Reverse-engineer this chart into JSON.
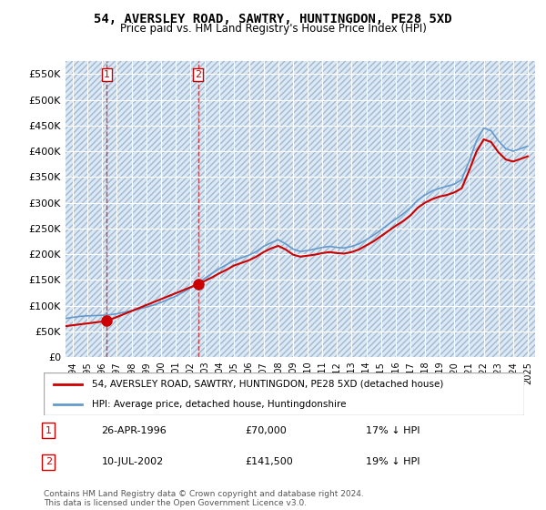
{
  "title": "54, AVERSLEY ROAD, SAWTRY, HUNTINGDON, PE28 5XD",
  "subtitle": "Price paid vs. HM Land Registry's House Price Index (HPI)",
  "ylabel": "",
  "background_color": "#ffffff",
  "plot_bg_color": "#dce9f5",
  "grid_color": "#ffffff",
  "hatch_color": "#c8d8e8",
  "sale_dates": [
    1996.32,
    2002.53
  ],
  "sale_prices": [
    70000,
    141500
  ],
  "sale_labels": [
    "1",
    "2"
  ],
  "hpi_line_color": "#6699cc",
  "price_line_color": "#cc0000",
  "ylim": [
    0,
    575000
  ],
  "yticks": [
    0,
    50000,
    100000,
    150000,
    200000,
    250000,
    300000,
    350000,
    400000,
    450000,
    500000,
    550000
  ],
  "ytick_labels": [
    "£0",
    "£50K",
    "£100K",
    "£150K",
    "£200K",
    "£250K",
    "£300K",
    "£350K",
    "£400K",
    "£450K",
    "£500K",
    "£550K"
  ],
  "xlim_start": 1993.5,
  "xlim_end": 2025.5,
  "xtick_years": [
    1994,
    1995,
    1996,
    1997,
    1998,
    1999,
    2000,
    2001,
    2002,
    2003,
    2004,
    2005,
    2006,
    2007,
    2008,
    2009,
    2010,
    2011,
    2012,
    2013,
    2014,
    2015,
    2016,
    2017,
    2018,
    2019,
    2020,
    2021,
    2022,
    2023,
    2024,
    2025
  ],
  "legend_label_red": "54, AVERSLEY ROAD, SAWTRY, HUNTINGDON, PE28 5XD (detached house)",
  "legend_label_blue": "HPI: Average price, detached house, Huntingdonshire",
  "annotation1": [
    "1",
    "26-APR-1996",
    "£70,000",
    "17% ↓ HPI"
  ],
  "annotation2": [
    "2",
    "10-JUL-2002",
    "£141,500",
    "19% ↓ HPI"
  ],
  "footer": "Contains HM Land Registry data © Crown copyright and database right 2024.\nThis data is licensed under the Open Government Licence v3.0.",
  "hpi_x": [
    1993.5,
    1994,
    1994.5,
    1995,
    1995.5,
    1996,
    1996.5,
    1997,
    1997.5,
    1998,
    1998.5,
    1999,
    1999.5,
    2000,
    2000.5,
    2001,
    2001.5,
    2002,
    2002.5,
    2003,
    2003.5,
    2004,
    2004.5,
    2005,
    2005.5,
    2006,
    2006.5,
    2007,
    2007.5,
    2008,
    2008.5,
    2009,
    2009.5,
    2010,
    2010.5,
    2011,
    2011.5,
    2012,
    2012.5,
    2013,
    2013.5,
    2014,
    2014.5,
    2015,
    2015.5,
    2016,
    2016.5,
    2017,
    2017.5,
    2018,
    2018.5,
    2019,
    2019.5,
    2020,
    2020.5,
    2021,
    2021.5,
    2022,
    2022.5,
    2023,
    2023.5,
    2024,
    2024.5,
    2025
  ],
  "hpi_y": [
    75000,
    77000,
    79000,
    80000,
    80500,
    81000,
    82000,
    84000,
    87000,
    90000,
    93000,
    97000,
    101000,
    106000,
    112000,
    118000,
    126000,
    134000,
    143000,
    153000,
    163000,
    172000,
    180000,
    188000,
    193000,
    198000,
    205000,
    215000,
    222000,
    228000,
    220000,
    210000,
    205000,
    207000,
    210000,
    213000,
    215000,
    213000,
    212000,
    215000,
    220000,
    228000,
    237000,
    247000,
    258000,
    268000,
    278000,
    290000,
    305000,
    315000,
    323000,
    328000,
    332000,
    336000,
    345000,
    380000,
    420000,
    445000,
    440000,
    420000,
    405000,
    400000,
    405000,
    410000
  ],
  "price_x": [
    1993.5,
    1996.32,
    2002.53,
    2003,
    2003.5,
    2004,
    2004.5,
    2005,
    2005.5,
    2006,
    2006.5,
    2007,
    2007.5,
    2008,
    2008.5,
    2009,
    2009.5,
    2010,
    2010.5,
    2011,
    2011.5,
    2012,
    2012.5,
    2013,
    2013.5,
    2014,
    2014.5,
    2015,
    2015.5,
    2016,
    2016.5,
    2017,
    2017.5,
    2018,
    2018.5,
    2019,
    2019.5,
    2020,
    2020.5,
    2021,
    2021.5,
    2022,
    2022.5,
    2023,
    2023.5,
    2024,
    2024.5,
    2025
  ],
  "price_y": [
    60000,
    70000,
    141500,
    148000,
    155000,
    163000,
    170000,
    178000,
    183000,
    188000,
    195000,
    204000,
    211000,
    216000,
    209000,
    199000,
    195000,
    197000,
    199000,
    202000,
    204000,
    202000,
    201000,
    204000,
    209000,
    217000,
    225000,
    235000,
    245000,
    255000,
    264000,
    275000,
    290000,
    300000,
    307000,
    312000,
    315000,
    320000,
    328000,
    362000,
    399000,
    423000,
    418000,
    398000,
    384000,
    380000,
    385000,
    390000
  ]
}
